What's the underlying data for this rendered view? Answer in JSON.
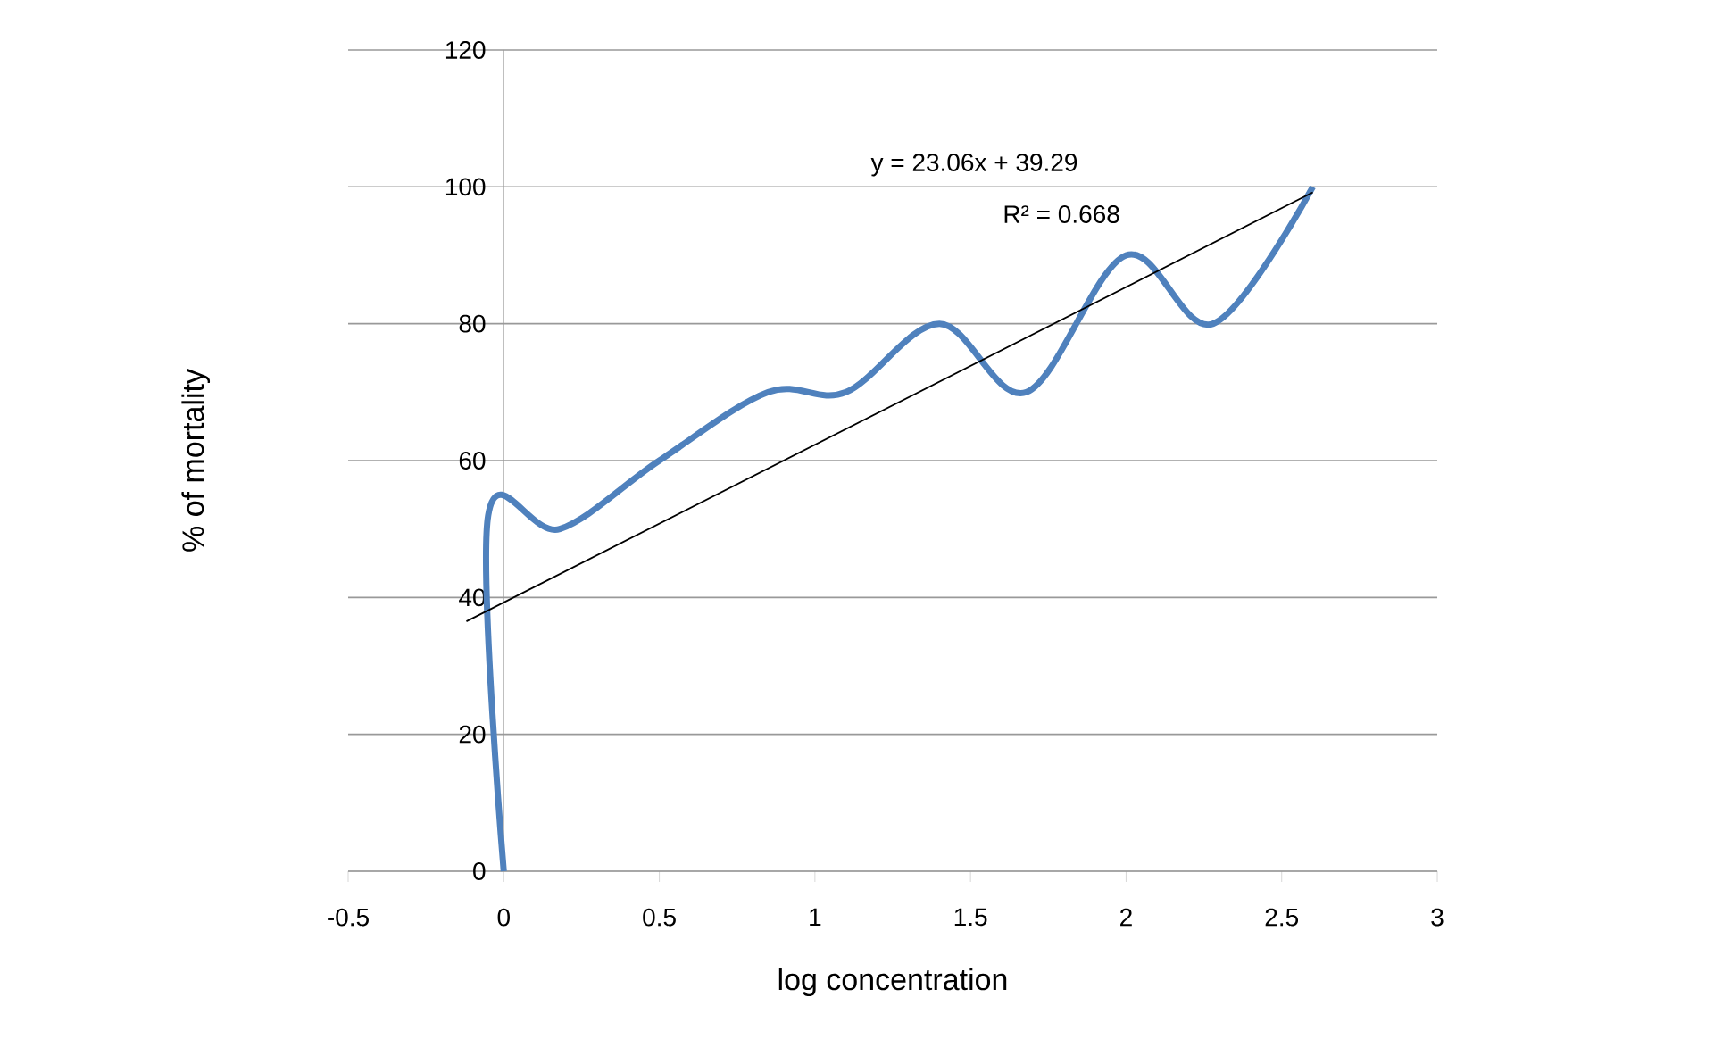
{
  "chart_data": {
    "type": "line",
    "xlabel": "log concentration",
    "ylabel": "% of mortality",
    "xlim": [
      -0.5,
      3
    ],
    "ylim": [
      0,
      120
    ],
    "xticks": [
      -0.5,
      0,
      0.5,
      1,
      1.5,
      2,
      2.5,
      3
    ],
    "yticks": [
      0,
      20,
      40,
      60,
      80,
      100,
      120
    ],
    "grid": "y",
    "marker": "none",
    "line_style": "solid",
    "annotations": [
      "y = 23.06x + 39.29",
      "R² = 0.668"
    ],
    "series": [
      {
        "color": "#4f81bd",
        "x": [
          0,
          -0.05,
          0.18,
          0.5,
          0.85,
          1.1,
          1.4,
          1.68,
          2.0,
          2.28,
          2.6
        ],
        "values": [
          0,
          52,
          50,
          60,
          70,
          70,
          80,
          70,
          90,
          80,
          100
        ]
      },
      {
        "type": "line",
        "color": "#000000",
        "x": [
          -0.12,
          2.6
        ],
        "values": [
          36.5,
          99.2
        ]
      }
    ]
  }
}
